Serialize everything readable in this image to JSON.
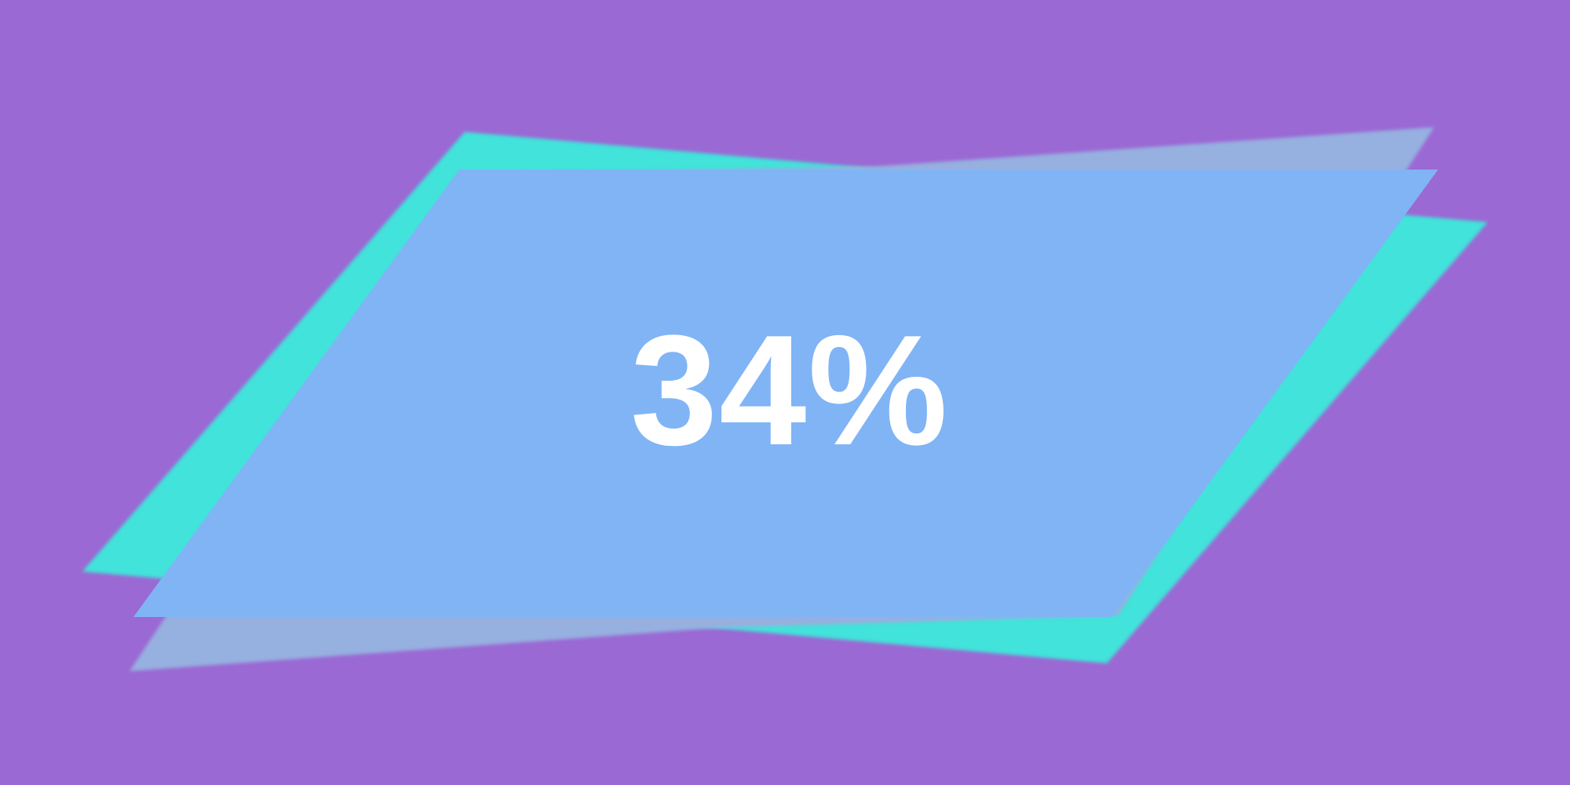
{
  "background_color": "#9b69d4",
  "colors": {
    "back_shape": "#41e3da",
    "middle_shape": "#96b0e0",
    "front_panel": "#80b4f5",
    "label": "#ffffff"
  },
  "progress": {
    "label": "34%",
    "value": 0.34
  }
}
